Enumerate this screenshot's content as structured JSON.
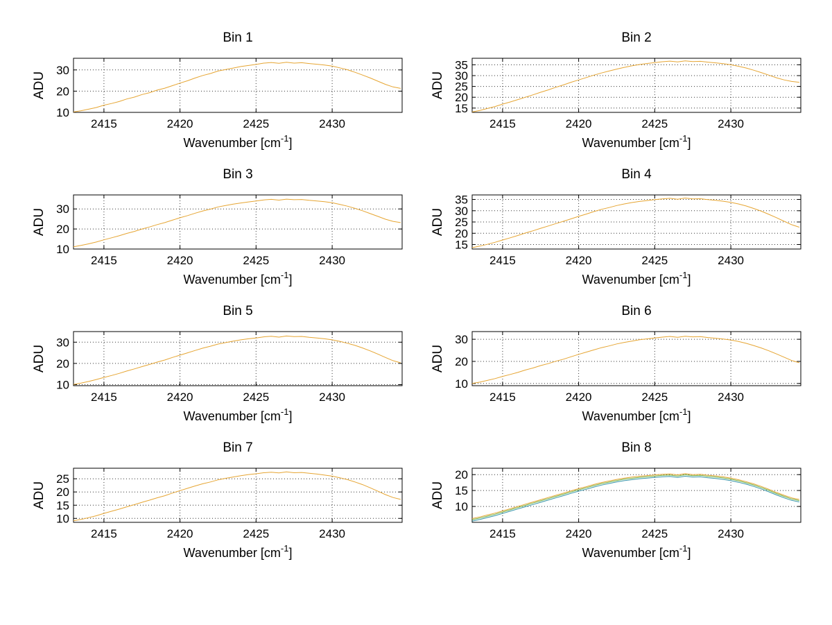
{
  "page": {
    "background": "#ffffff"
  },
  "chart_data": {
    "type": "line",
    "layout": "4x2-grid",
    "ylabel": "ADU",
    "xlabel": "Wavenumber [cm⁻¹]",
    "xlabel_parts": {
      "base": "Wavenumber [cm",
      "sup": "-1",
      "close": "]"
    },
    "grid": "dotted",
    "x_lim": [
      2413,
      2434.6
    ],
    "x_ticks": [
      2415,
      2420,
      2425,
      2430
    ],
    "x": [
      2413,
      2413.5,
      2414,
      2414.5,
      2415,
      2415.5,
      2416,
      2416.5,
      2417,
      2417.5,
      2418,
      2418.5,
      2419,
      2419.5,
      2420,
      2420.5,
      2421,
      2421.5,
      2422,
      2422.5,
      2423,
      2423.5,
      2424,
      2424.5,
      2425,
      2425.5,
      2426,
      2426.5,
      2427,
      2427.5,
      2428,
      2428.5,
      2429,
      2429.5,
      2430,
      2430.5,
      2431,
      2431.5,
      2432,
      2432.5,
      2433,
      2433.5,
      2434,
      2434.5
    ],
    "subplots": [
      {
        "title": "Bin 1",
        "y_lim": [
          10,
          35.5
        ],
        "y_ticks": [
          10,
          20,
          30
        ],
        "series": [
          {
            "name": "trace-orange",
            "color": "#e6a532",
            "dy": 0
          }
        ],
        "y": [
          10.2,
          10.8,
          11.5,
          12.3,
          13.4,
          14.2,
          15.1,
          16.3,
          17.2,
          18.4,
          19.3,
          20.5,
          21.4,
          22.6,
          23.8,
          24.9,
          26.2,
          27.4,
          28.3,
          29.5,
          30.2,
          30.9,
          31.6,
          32.1,
          32.6,
          33.2,
          33.5,
          33.1,
          33.6,
          33.2,
          33.4,
          33.0,
          32.7,
          32.3,
          31.8,
          31.0,
          30.1,
          28.9,
          27.6,
          26.2,
          24.7,
          23.2,
          22.0,
          21.3
        ]
      },
      {
        "title": "Bin 2",
        "y_lim": [
          13,
          38
        ],
        "y_ticks": [
          15,
          20,
          25,
          30,
          35
        ],
        "series": [
          {
            "name": "trace-orange",
            "color": "#e6a532",
            "dy": 0
          }
        ],
        "y": [
          13.2,
          13.9,
          14.8,
          15.7,
          16.8,
          17.8,
          18.9,
          20.0,
          21.1,
          22.3,
          23.4,
          24.6,
          25.7,
          26.9,
          28.0,
          29.1,
          30.2,
          31.2,
          32.1,
          33.0,
          33.8,
          34.5,
          35.1,
          35.6,
          36.0,
          36.4,
          36.7,
          36.3,
          36.8,
          36.5,
          36.6,
          36.2,
          35.9,
          35.5,
          35.0,
          34.3,
          33.5,
          32.5,
          31.4,
          30.2,
          29.0,
          28.0,
          27.3,
          26.9
        ]
      },
      {
        "title": "Bin 3",
        "y_lim": [
          10,
          37
        ],
        "y_ticks": [
          10,
          20,
          30
        ],
        "series": [
          {
            "name": "trace-orange",
            "color": "#e6a532",
            "dy": 0
          }
        ],
        "y": [
          11.1,
          11.8,
          12.6,
          13.5,
          14.6,
          15.6,
          16.6,
          17.8,
          18.8,
          20.0,
          21.0,
          22.2,
          23.2,
          24.4,
          25.6,
          26.7,
          27.9,
          29.0,
          29.9,
          31.0,
          31.7,
          32.4,
          33.0,
          33.5,
          34.0,
          34.5,
          34.8,
          34.4,
          34.9,
          34.6,
          34.7,
          34.3,
          34.0,
          33.6,
          33.1,
          32.3,
          31.4,
          30.3,
          29.1,
          27.7,
          26.3,
          24.9,
          23.8,
          23.2
        ]
      },
      {
        "title": "Bin 4",
        "y_lim": [
          13,
          37
        ],
        "y_ticks": [
          15,
          20,
          25,
          30,
          35
        ],
        "series": [
          {
            "name": "trace-orange",
            "color": "#e6a532",
            "dy": 0
          }
        ],
        "y": [
          13.6,
          14.3,
          15.1,
          16.0,
          17.0,
          18.0,
          19.0,
          20.1,
          21.1,
          22.2,
          23.2,
          24.3,
          25.3,
          26.4,
          27.5,
          28.5,
          29.6,
          30.6,
          31.4,
          32.3,
          33.0,
          33.6,
          34.1,
          34.5,
          34.9,
          35.2,
          35.5,
          35.1,
          35.6,
          35.2,
          35.3,
          34.9,
          34.6,
          34.2,
          33.7,
          33.0,
          32.1,
          31.0,
          29.8,
          28.4,
          26.9,
          25.3,
          23.8,
          22.7
        ]
      },
      {
        "title": "Bin 5",
        "y_lim": [
          9.5,
          35
        ],
        "y_ticks": [
          10,
          20,
          30
        ],
        "series": [
          {
            "name": "trace-orange",
            "color": "#e6a532",
            "dy": 0
          }
        ],
        "y": [
          10.1,
          10.7,
          11.5,
          12.4,
          13.4,
          14.3,
          15.3,
          16.4,
          17.4,
          18.5,
          19.5,
          20.6,
          21.6,
          22.8,
          23.9,
          25.0,
          26.1,
          27.2,
          28.1,
          29.1,
          29.8,
          30.5,
          31.1,
          31.6,
          32.0,
          32.5,
          32.8,
          32.4,
          32.9,
          32.6,
          32.7,
          32.3,
          32.0,
          31.6,
          31.1,
          30.4,
          29.5,
          28.5,
          27.3,
          25.9,
          24.4,
          22.8,
          21.3,
          20.3
        ]
      },
      {
        "title": "Bin 6",
        "y_lim": [
          9,
          33.5
        ],
        "y_ticks": [
          10,
          20,
          30
        ],
        "series": [
          {
            "name": "trace-orange",
            "color": "#e6a532",
            "dy": 0
          }
        ],
        "y": [
          10.0,
          10.6,
          11.4,
          12.2,
          13.2,
          14.1,
          15.0,
          16.1,
          17.0,
          18.1,
          19.0,
          20.1,
          21.0,
          22.1,
          23.2,
          24.2,
          25.2,
          26.2,
          27.0,
          27.9,
          28.6,
          29.2,
          29.8,
          30.2,
          30.6,
          31.0,
          31.3,
          30.9,
          31.4,
          31.1,
          31.2,
          30.8,
          30.5,
          30.1,
          29.7,
          29.0,
          28.2,
          27.2,
          26.1,
          24.8,
          23.4,
          21.9,
          20.4,
          19.4
        ]
      },
      {
        "title": "Bin 7",
        "y_lim": [
          8.5,
          29
        ],
        "y_ticks": [
          10,
          15,
          20,
          25
        ],
        "series": [
          {
            "name": "trace-orange",
            "color": "#e6a532",
            "dy": 0
          }
        ],
        "y": [
          9.1,
          9.6,
          10.3,
          11.0,
          11.9,
          12.7,
          13.5,
          14.4,
          15.2,
          16.1,
          16.9,
          17.8,
          18.6,
          19.6,
          20.5,
          21.4,
          22.3,
          23.1,
          23.8,
          24.6,
          25.2,
          25.7,
          26.2,
          26.6,
          26.9,
          27.3,
          27.5,
          27.2,
          27.6,
          27.3,
          27.4,
          27.1,
          26.8,
          26.4,
          26.0,
          25.4,
          24.7,
          23.8,
          22.8,
          21.6,
          20.3,
          19.0,
          17.9,
          17.2
        ]
      },
      {
        "title": "Bin 8",
        "y_lim": [
          5,
          22
        ],
        "y_ticks": [
          10,
          15,
          20
        ],
        "series": [
          {
            "name": "trace-teal",
            "color": "#3593a8",
            "dy": -0.8
          },
          {
            "name": "trace-green",
            "color": "#6fae3f",
            "dy": -0.35
          },
          {
            "name": "trace-orange",
            "color": "#e6a532",
            "dy": 0
          }
        ],
        "y": [
          6.2,
          6.7,
          7.3,
          7.9,
          8.6,
          9.3,
          10.0,
          10.7,
          11.4,
          12.1,
          12.8,
          13.5,
          14.2,
          14.9,
          15.6,
          16.2,
          16.9,
          17.5,
          18.0,
          18.5,
          18.9,
          19.2,
          19.5,
          19.7,
          19.9,
          20.1,
          20.2,
          19.9,
          20.3,
          20.0,
          20.1,
          19.8,
          19.6,
          19.3,
          18.9,
          18.4,
          17.8,
          17.1,
          16.3,
          15.4,
          14.4,
          13.5,
          12.7,
          12.2
        ]
      }
    ]
  }
}
